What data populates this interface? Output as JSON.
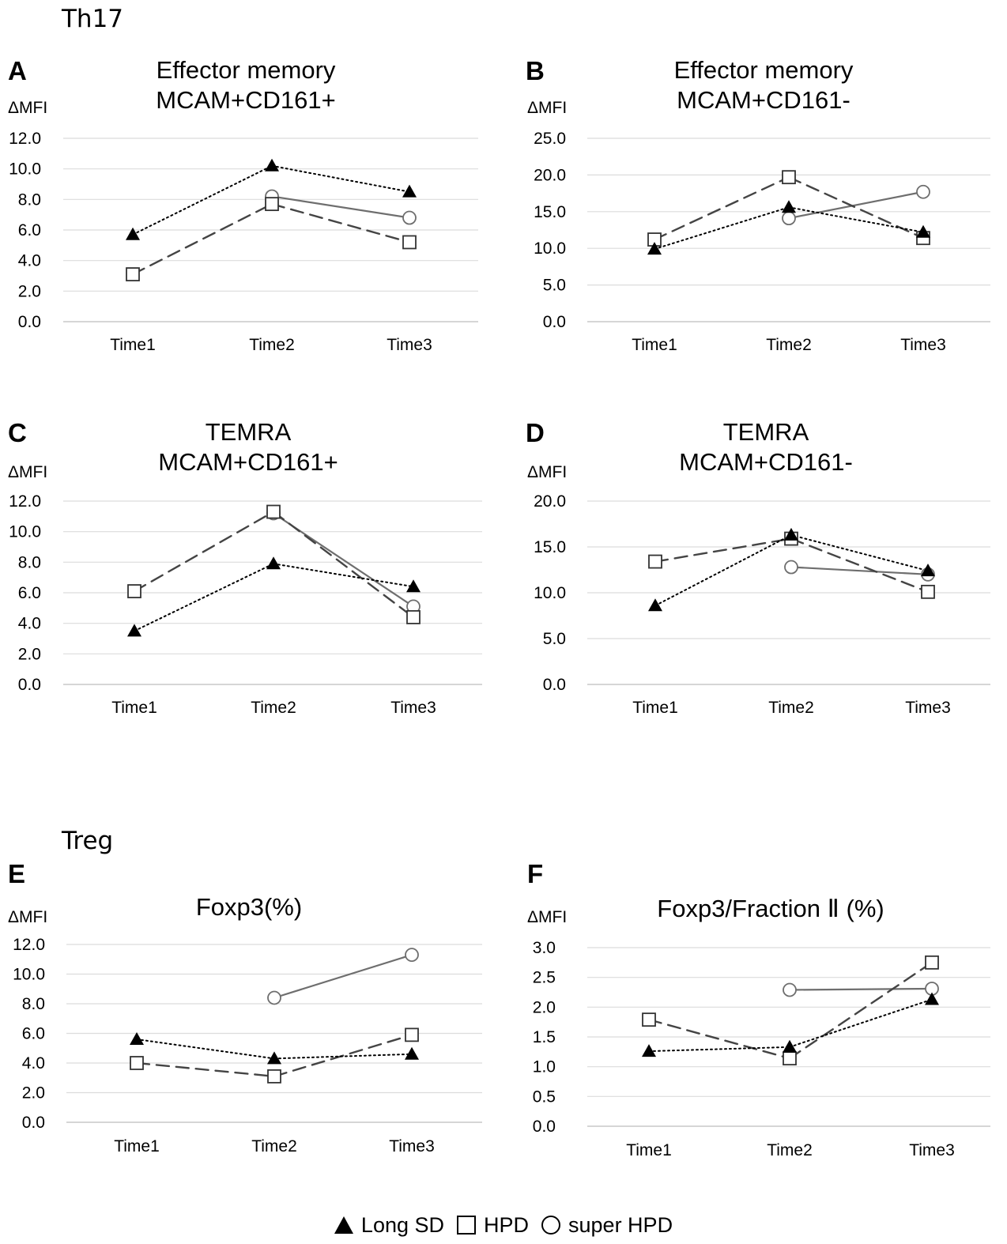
{
  "sections": {
    "th17": "Th17",
    "treg": "Treg"
  },
  "legend": [
    {
      "label": "Long SD",
      "marker": "filled-triangle"
    },
    {
      "label": "HPD",
      "marker": "open-square"
    },
    {
      "label": "super HPD",
      "marker": "open-circle"
    }
  ],
  "chart_data": [
    {
      "type": "line",
      "panel": "A",
      "title": "Effector memory",
      "subtitle": "MCAM+CD161+",
      "ylabel": "ΔMFI",
      "xlabel": "",
      "categories": [
        "Time1",
        "Time2",
        "Time3"
      ],
      "ylim": [
        0,
        12
      ],
      "yticks": [
        "0.0",
        "2.0",
        "4.0",
        "6.0",
        "8.0",
        "10.0",
        "12.0"
      ],
      "grid": true,
      "series": [
        {
          "name": "Long SD",
          "values": [
            5.7,
            10.2,
            8.5
          ]
        },
        {
          "name": "HPD",
          "values": [
            3.1,
            7.7,
            5.2
          ]
        },
        {
          "name": "super HPD",
          "values": [
            null,
            8.2,
            6.8
          ]
        }
      ]
    },
    {
      "type": "line",
      "panel": "B",
      "title": "Effector memory",
      "subtitle": "MCAM+CD161-",
      "ylabel": "ΔMFI",
      "xlabel": "",
      "categories": [
        "Time1",
        "Time2",
        "Time3"
      ],
      "ylim": [
        0,
        25
      ],
      "yticks": [
        "0.0",
        "5.0",
        "10.0",
        "15.0",
        "20.0",
        "25.0"
      ],
      "grid": true,
      "series": [
        {
          "name": "Long SD",
          "values": [
            9.9,
            15.6,
            12.2
          ]
        },
        {
          "name": "HPD",
          "values": [
            11.2,
            19.7,
            11.4
          ]
        },
        {
          "name": "super HPD",
          "values": [
            null,
            14.1,
            17.7
          ]
        }
      ]
    },
    {
      "type": "line",
      "panel": "C",
      "title": "TEMRA",
      "subtitle": "MCAM+CD161+",
      "ylabel": "ΔMFI",
      "xlabel": "",
      "categories": [
        "Time1",
        "Time2",
        "Time3"
      ],
      "ylim": [
        0,
        12
      ],
      "yticks": [
        "0.0",
        "2.0",
        "4.0",
        "6.0",
        "8.0",
        "10.0",
        "12.0"
      ],
      "grid": true,
      "series": [
        {
          "name": "Long SD",
          "values": [
            3.5,
            7.9,
            6.4
          ]
        },
        {
          "name": "HPD",
          "values": [
            6.1,
            11.3,
            4.4
          ]
        },
        {
          "name": "super HPD",
          "values": [
            null,
            11.2,
            5.1
          ]
        }
      ]
    },
    {
      "type": "line",
      "panel": "D",
      "title": "TEMRA",
      "subtitle": "MCAM+CD161-",
      "ylabel": "ΔMFI",
      "xlabel": "",
      "categories": [
        "Time1",
        "Time2",
        "Time3"
      ],
      "ylim": [
        0,
        20
      ],
      "yticks": [
        "0.0",
        "5.0",
        "10.0",
        "15.0",
        "20.0"
      ],
      "grid": true,
      "series": [
        {
          "name": "Long SD",
          "values": [
            8.6,
            16.3,
            12.4
          ]
        },
        {
          "name": "HPD",
          "values": [
            13.4,
            15.9,
            10.1
          ]
        },
        {
          "name": "super HPD",
          "values": [
            null,
            12.8,
            12.0
          ]
        }
      ]
    },
    {
      "type": "line",
      "panel": "E",
      "title": "Foxp3(%)",
      "subtitle": "",
      "ylabel": "ΔMFI",
      "xlabel": "",
      "categories": [
        "Time1",
        "Time2",
        "Time3"
      ],
      "ylim": [
        0,
        12
      ],
      "yticks": [
        "0.0",
        "2.0",
        "4.0",
        "6.0",
        "8.0",
        "10.0",
        "12.0"
      ],
      "grid": true,
      "series": [
        {
          "name": "Long SD",
          "values": [
            5.6,
            4.3,
            4.6
          ]
        },
        {
          "name": "HPD",
          "values": [
            4.0,
            3.1,
            5.9
          ]
        },
        {
          "name": "super HPD",
          "values": [
            null,
            8.4,
            11.3
          ]
        }
      ]
    },
    {
      "type": "line",
      "panel": "F",
      "title": "Foxp3/Fraction Ⅱ (%)",
      "subtitle": "",
      "ylabel": "ΔMFI",
      "xlabel": "",
      "categories": [
        "Time1",
        "Time2",
        "Time3"
      ],
      "ylim": [
        0,
        3
      ],
      "yticks": [
        "0.0",
        "0.5",
        "1.0",
        "1.5",
        "2.0",
        "2.5",
        "3.0"
      ],
      "grid": true,
      "series": [
        {
          "name": "Long SD",
          "values": [
            1.26,
            1.33,
            2.13
          ]
        },
        {
          "name": "HPD",
          "values": [
            1.79,
            1.14,
            2.75
          ]
        },
        {
          "name": "super HPD",
          "values": [
            null,
            2.29,
            2.31
          ]
        }
      ]
    }
  ]
}
